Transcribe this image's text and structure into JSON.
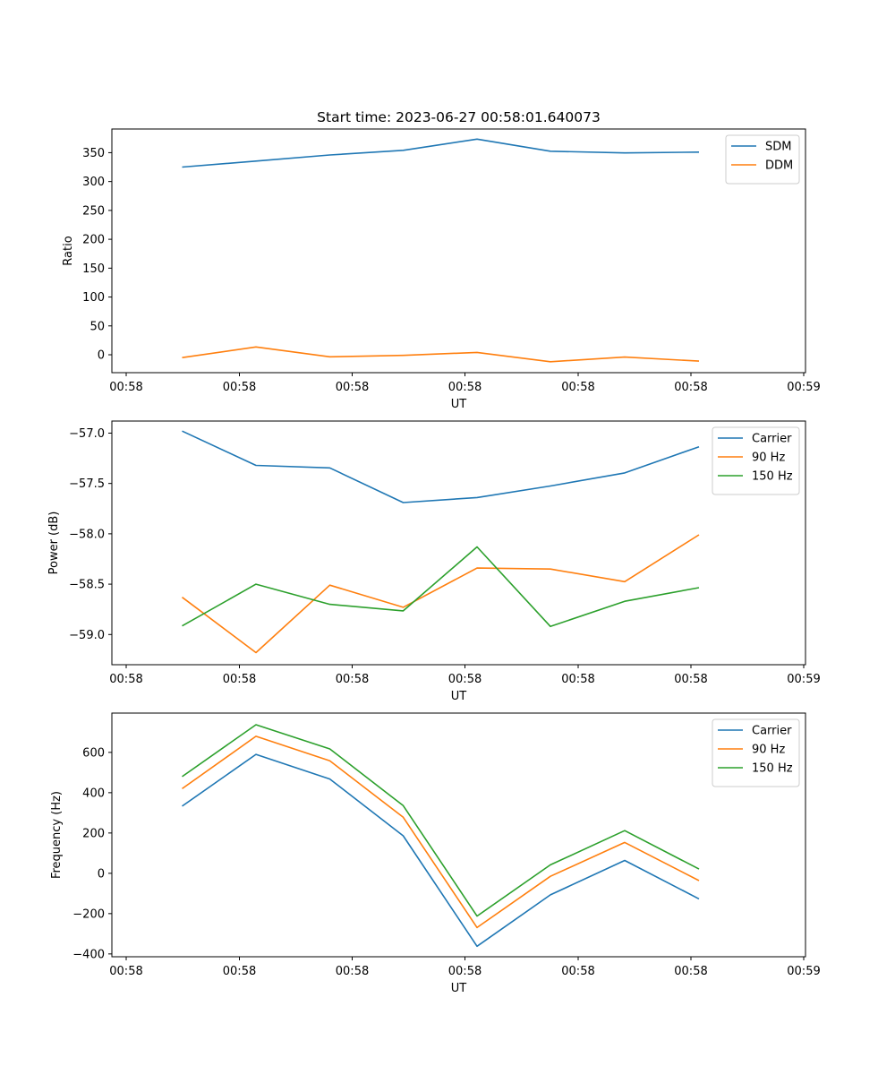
{
  "chart_data": [
    {
      "type": "line",
      "title": "Start time: 2023-06-27 00:58:01.640073",
      "xlabel": "UT",
      "ylabel": "Ratio",
      "xticks": [
        "00:58",
        "00:58",
        "00:58",
        "00:58",
        "00:58",
        "00:58",
        "00:58",
        "00:59"
      ],
      "yticks": [
        0,
        50,
        100,
        150,
        200,
        250,
        300,
        350
      ],
      "ylim": [
        -31,
        391
      ],
      "legend_position": "top-right",
      "grid": false,
      "series": [
        {
          "name": "SDM",
          "color": "#1f77b4",
          "values": [
            325,
            335.5,
            346,
            354,
            373.5,
            352.5,
            349.5,
            351
          ]
        },
        {
          "name": "DDM",
          "color": "#ff7f0e",
          "values": [
            -5,
            13.5,
            -3.5,
            -1,
            4,
            -12,
            -4,
            -11
          ]
        }
      ]
    },
    {
      "type": "line",
      "title": "",
      "xlabel": "UT",
      "ylabel": "Power (dB)",
      "xticks": [
        "00:58",
        "00:58",
        "00:58",
        "00:58",
        "00:58",
        "00:58",
        "00:58",
        "00:59"
      ],
      "yticks": [
        "−59.0",
        "−58.5",
        "−58.0",
        "−57.5",
        "−57.0"
      ],
      "ytick_values": [
        -59.0,
        -58.5,
        -58.0,
        -57.5,
        -57.0
      ],
      "ylim": [
        -59.3,
        -56.88
      ],
      "legend_position": "top-right",
      "grid": false,
      "series": [
        {
          "name": "Carrier",
          "color": "#1f77b4",
          "values": [
            -56.98,
            -57.32,
            -57.345,
            -57.69,
            -57.64,
            -57.525,
            -57.395,
            -57.135
          ]
        },
        {
          "name": "90 Hz",
          "color": "#ff7f0e",
          "values": [
            -58.63,
            -59.18,
            -58.51,
            -58.73,
            -58.34,
            -58.35,
            -58.475,
            -58.01
          ]
        },
        {
          "name": "150 Hz",
          "color": "#2ca02c",
          "values": [
            -58.915,
            -58.5,
            -58.7,
            -58.765,
            -58.13,
            -58.92,
            -58.67,
            -58.535
          ]
        }
      ]
    },
    {
      "type": "line",
      "title": "",
      "xlabel": "UT",
      "ylabel": "Frequency (Hz)",
      "xticks": [
        "00:58",
        "00:58",
        "00:58",
        "00:58",
        "00:58",
        "00:58",
        "00:58",
        "00:59"
      ],
      "yticks": [
        "−400",
        "−200",
        "0",
        "200",
        "400",
        "600"
      ],
      "ytick_values": [
        -400,
        -200,
        0,
        200,
        400,
        600
      ],
      "ylim": [
        -414,
        795
      ],
      "legend_position": "top-right",
      "grid": false,
      "series": [
        {
          "name": "Carrier",
          "color": "#1f77b4",
          "values": [
            333,
            590,
            468,
            186,
            -362,
            -107,
            64,
            -127
          ]
        },
        {
          "name": "90 Hz",
          "color": "#ff7f0e",
          "values": [
            420,
            680,
            558,
            278,
            -269,
            -15,
            153,
            -36
          ]
        },
        {
          "name": "150 Hz",
          "color": "#2ca02c",
          "values": [
            480,
            737,
            617,
            336,
            -212,
            42,
            212,
            21
          ]
        }
      ]
    }
  ]
}
